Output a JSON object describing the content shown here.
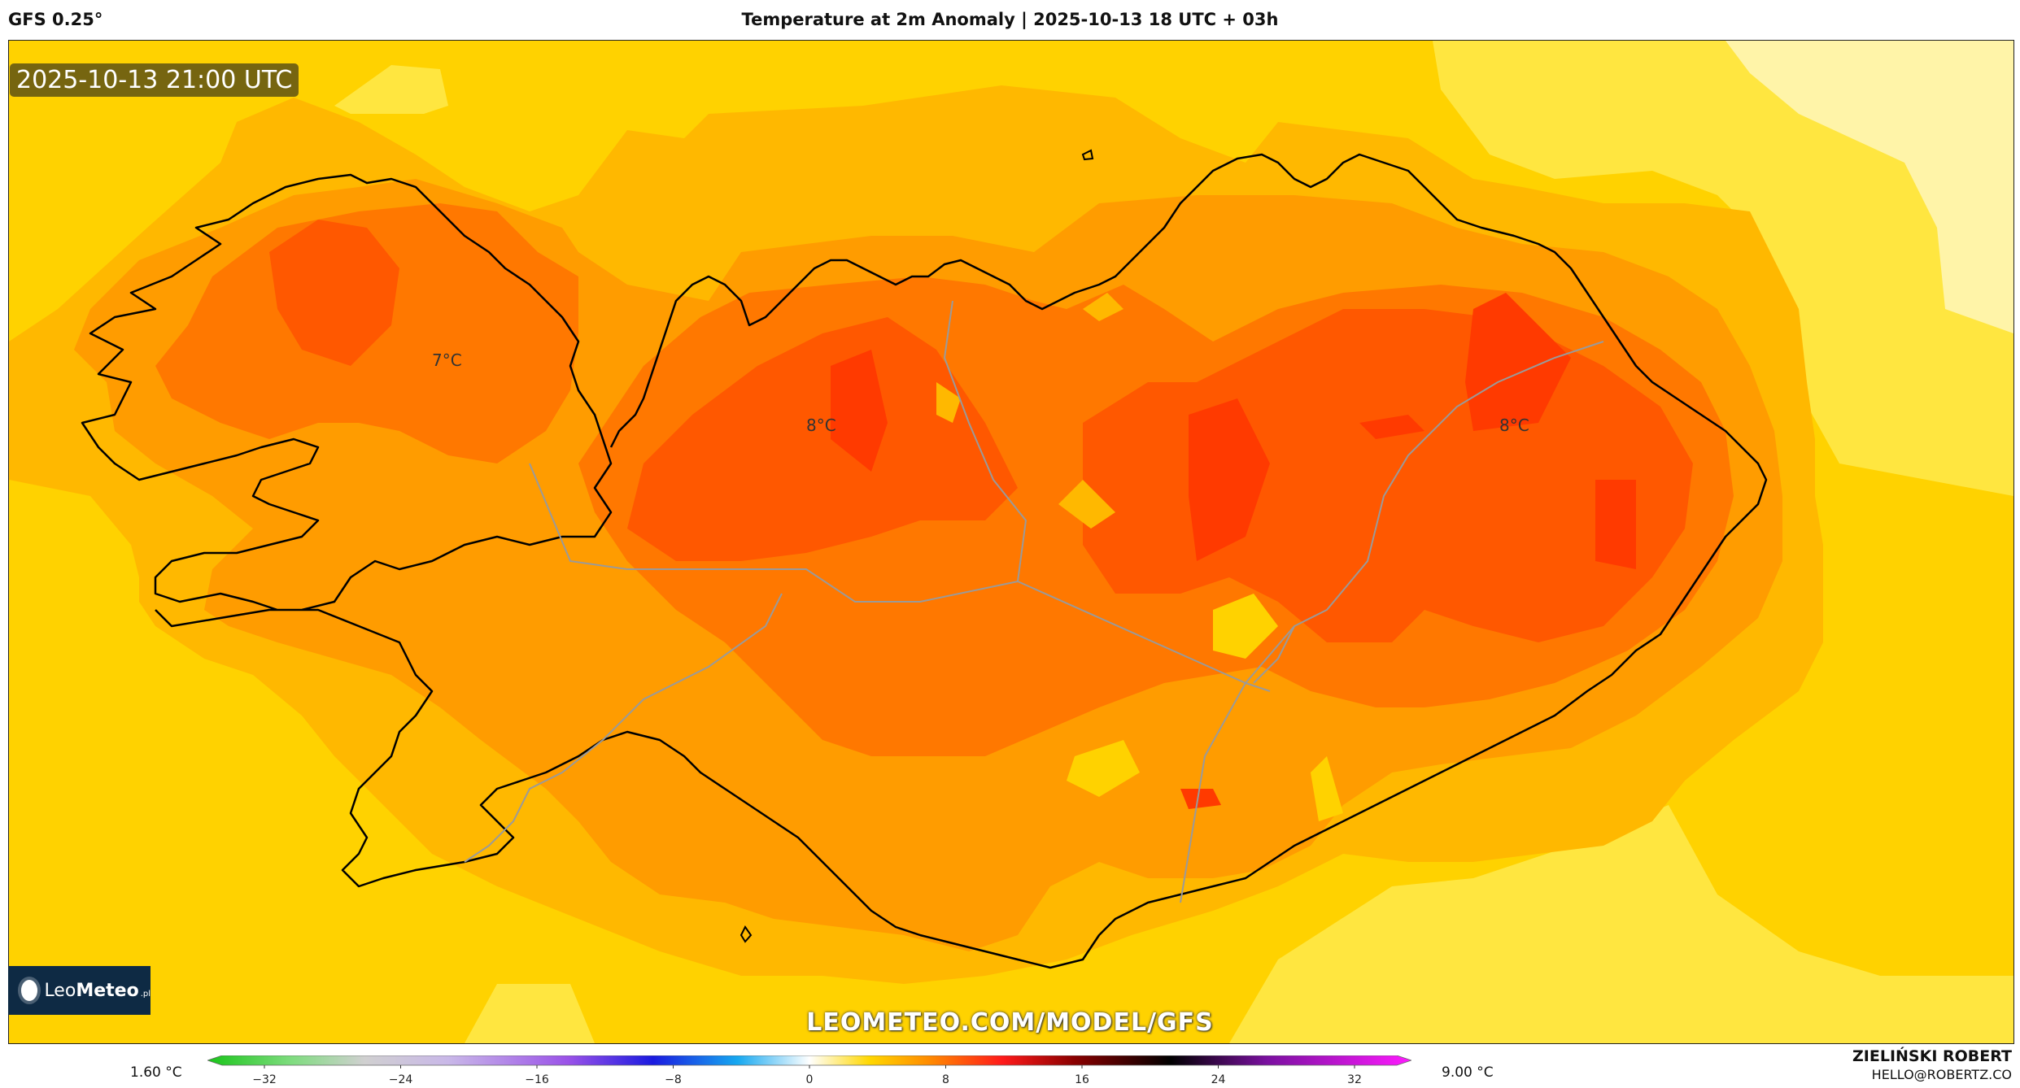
{
  "header": {
    "model": "GFS 0.25°",
    "title": "Temperature at 2m Anomaly | 2025-10-13 18 UTC + 03h"
  },
  "timestamp": "2025-10-13 21:00 UTC",
  "watermark": "LEOMETEO.COM/MODEL/GFS",
  "logo": {
    "brand_a": "Leo",
    "brand_b": "Meteo",
    "suffix": ".pl"
  },
  "map_labels": [
    "7°C",
    "8°C",
    "8°C"
  ],
  "colorbar": {
    "min_label": "1.60 °C",
    "max_label": "9.00 °C",
    "ticks": [
      "−32",
      "−24",
      "−16",
      "−8",
      "0",
      "8",
      "16",
      "24",
      "32"
    ]
  },
  "author": {
    "name": "ZIELIŃSKI ROBERT",
    "email": "HELLO@ROBERTZ.CO"
  },
  "colors": {
    "level1": "#ffee88",
    "level2": "#ffe030",
    "level3": "#ffd000",
    "level4": "#ffb800",
    "level5": "#ff9c00",
    "level6": "#ff7800",
    "level7": "#ff5800",
    "level8": "#ff3a00"
  }
}
